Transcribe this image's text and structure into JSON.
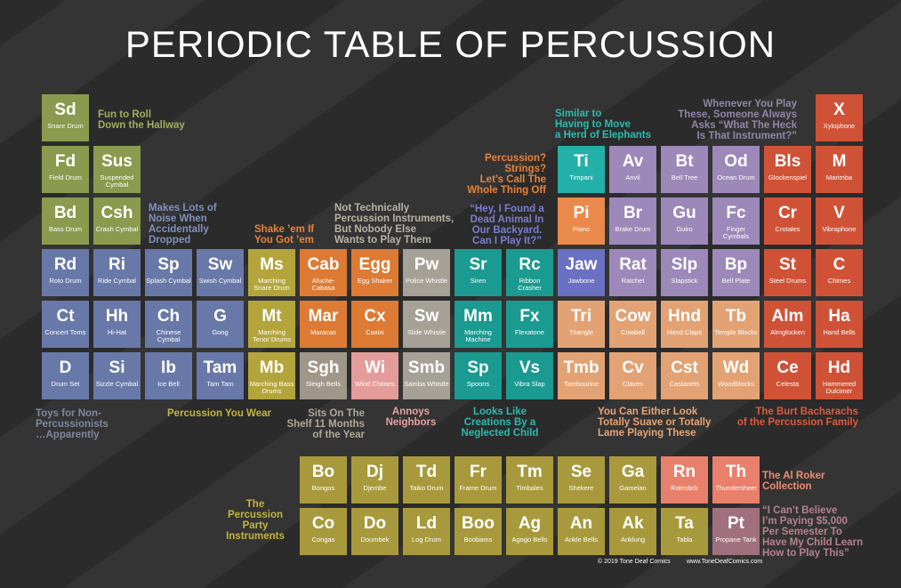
{
  "title": "PERIODIC TABLE OF PERCUSSION",
  "table": {
    "rows": [
      [
        {
          "symbol": "Sd",
          "name": "Snare Drum",
          "color": "#8b9a4e"
        },
        null,
        null,
        null,
        null,
        null,
        null,
        null,
        null,
        null,
        null,
        null,
        null,
        null,
        null,
        {
          "symbol": "X",
          "name": "Xylophone",
          "color": "#cf5237"
        }
      ],
      [
        {
          "symbol": "Fd",
          "name": "Field Drum",
          "color": "#8b9a4e"
        },
        {
          "symbol": "Sus",
          "name": "Suspended Cymbal",
          "color": "#8b9a4e"
        },
        null,
        null,
        null,
        null,
        null,
        null,
        null,
        null,
        {
          "symbol": "Ti",
          "name": "Timpani",
          "color": "#22b0a8"
        },
        {
          "symbol": "Av",
          "name": "Anvil",
          "color": "#9c88b9"
        },
        {
          "symbol": "Bt",
          "name": "Bell Tree",
          "color": "#9c88b9"
        },
        {
          "symbol": "Od",
          "name": "Ocean Drum",
          "color": "#9c88b9"
        },
        {
          "symbol": "Bls",
          "name": "Glockenspiel",
          "color": "#cf5237"
        },
        {
          "symbol": "M",
          "name": "Marimba",
          "color": "#cf5237"
        }
      ],
      [
        {
          "symbol": "Bd",
          "name": "Bass Drum",
          "color": "#8b9a4e"
        },
        {
          "symbol": "Csh",
          "name": "Crash Cymbal",
          "color": "#8b9a4e"
        },
        null,
        null,
        null,
        null,
        null,
        null,
        null,
        null,
        {
          "symbol": "Pi",
          "name": "Piano",
          "color": "#e98a4c"
        },
        {
          "symbol": "Br",
          "name": "Brake Drum",
          "color": "#9c88b9"
        },
        {
          "symbol": "Gu",
          "name": "Guiro",
          "color": "#9c88b9"
        },
        {
          "symbol": "Fc",
          "name": "Finger Cymbals",
          "color": "#9c88b9"
        },
        {
          "symbol": "Cr",
          "name": "Crotales",
          "color": "#cf5237"
        },
        {
          "symbol": "V",
          "name": "Vibraphone",
          "color": "#cf5237"
        }
      ],
      [
        {
          "symbol": "Rd",
          "name": "Roto Drum",
          "color": "#6878a8"
        },
        {
          "symbol": "Ri",
          "name": "Ride Cymbal",
          "color": "#6878a8"
        },
        {
          "symbol": "Sp",
          "name": "Splash Cymbal",
          "color": "#6878a8"
        },
        {
          "symbol": "Sw",
          "name": "Swish Cymbal",
          "color": "#6878a8"
        },
        {
          "symbol": "Ms",
          "name": "Marching Snare Drum",
          "color": "#b3a53c"
        },
        {
          "symbol": "Cab",
          "name": "Afuche-Cabasa",
          "color": "#dd7a33"
        },
        {
          "symbol": "Egg",
          "name": "Egg Shaker",
          "color": "#dd7a33"
        },
        {
          "symbol": "Pw",
          "name": "Police Whistle",
          "color": "#a6a197"
        },
        {
          "symbol": "Sr",
          "name": "Siren",
          "color": "#1a9a90"
        },
        {
          "symbol": "Rc",
          "name": "Ribbon Crasher",
          "color": "#1a9a90"
        },
        {
          "symbol": "Jaw",
          "name": "Jawbone",
          "color": "#6a70c2"
        },
        {
          "symbol": "Rat",
          "name": "Ratchet",
          "color": "#9c88b9"
        },
        {
          "symbol": "Slp",
          "name": "Slapstick",
          "color": "#9c88b9"
        },
        {
          "symbol": "Bp",
          "name": "Bell Plate",
          "color": "#9c88b9"
        },
        {
          "symbol": "St",
          "name": "Steel Drums",
          "color": "#cf5237"
        },
        {
          "symbol": "C",
          "name": "Chimes",
          "color": "#cf5237"
        }
      ],
      [
        {
          "symbol": "Ct",
          "name": "Concert Toms",
          "color": "#6878a8"
        },
        {
          "symbol": "Hh",
          "name": "Hi-Hat",
          "color": "#6878a8"
        },
        {
          "symbol": "Ch",
          "name": "Chinese Cymbal",
          "color": "#6878a8"
        },
        {
          "symbol": "G",
          "name": "Gong",
          "color": "#6878a8"
        },
        {
          "symbol": "Mt",
          "name": "Marching Tenor Drums",
          "color": "#b3a53c"
        },
        {
          "symbol": "Mar",
          "name": "Maracas",
          "color": "#dd7a33"
        },
        {
          "symbol": "Cx",
          "name": "Caxixi",
          "color": "#dd7a33"
        },
        {
          "symbol": "Sw",
          "name": "Slide Whistle",
          "color": "#a6a197"
        },
        {
          "symbol": "Mm",
          "name": "Marching Machine",
          "color": "#1a9a90"
        },
        {
          "symbol": "Fx",
          "name": "Flexatone",
          "color": "#1a9a90"
        },
        {
          "symbol": "Tri",
          "name": "Triangle",
          "color": "#e3a274"
        },
        {
          "symbol": "Cow",
          "name": "Cowbell",
          "color": "#e3a274"
        },
        {
          "symbol": "Hnd",
          "name": "Hand Claps",
          "color": "#e3a274"
        },
        {
          "symbol": "Tb",
          "name": "Temple Blocks",
          "color": "#e3a274"
        },
        {
          "symbol": "Alm",
          "name": "Almglocken",
          "color": "#cf5237"
        },
        {
          "symbol": "Ha",
          "name": "Hand Bells",
          "color": "#cf5237"
        }
      ],
      [
        {
          "symbol": "D",
          "name": "Drum Set",
          "color": "#6878a8"
        },
        {
          "symbol": "Si",
          "name": "Sizzle Cymbal",
          "color": "#6878a8"
        },
        {
          "symbol": "Ib",
          "name": "Ice Bell",
          "color": "#6878a8"
        },
        {
          "symbol": "Tam",
          "name": "Tam Tam",
          "color": "#6878a8"
        },
        {
          "symbol": "Mb",
          "name": "Marching Bass Drums",
          "color": "#b3a53c"
        },
        {
          "symbol": "Sgh",
          "name": "Sleigh Bells",
          "color": "#a0968a"
        },
        {
          "symbol": "Wi",
          "name": "Wind Chimes",
          "color": "#e39c9a"
        },
        {
          "symbol": "Smb",
          "name": "Samba Whistle",
          "color": "#a6a197"
        },
        {
          "symbol": "Sp",
          "name": "Spoons",
          "color": "#1a9a90"
        },
        {
          "symbol": "Vs",
          "name": "Vibra Slap",
          "color": "#1a9a90"
        },
        {
          "symbol": "Tmb",
          "name": "Tambourine",
          "color": "#e3a274"
        },
        {
          "symbol": "Cv",
          "name": "Claves",
          "color": "#e3a274"
        },
        {
          "symbol": "Cst",
          "name": "Castanets",
          "color": "#e3a274"
        },
        {
          "symbol": "Wd",
          "name": "Woodblocks",
          "color": "#e3a274"
        },
        {
          "symbol": "Ce",
          "name": "Celesta",
          "color": "#cf5237"
        },
        {
          "symbol": "Hd",
          "name": "Hammered Dulcimer",
          "color": "#cf5237"
        }
      ]
    ]
  },
  "lower": {
    "rows": [
      [
        {
          "symbol": "Bo",
          "name": "Bongos",
          "color": "#a89a3c"
        },
        {
          "symbol": "Dj",
          "name": "Djembe",
          "color": "#a89a3c"
        },
        {
          "symbol": "Td",
          "name": "Taiko Drum",
          "color": "#a89a3c"
        },
        {
          "symbol": "Fr",
          "name": "Frame Drum",
          "color": "#a89a3c"
        },
        {
          "symbol": "Tm",
          "name": "Timbales",
          "color": "#a89a3c"
        },
        {
          "symbol": "Se",
          "name": "Shekere",
          "color": "#a89a3c"
        },
        {
          "symbol": "Ga",
          "name": "Gamelan",
          "color": "#a89a3c"
        },
        {
          "symbol": "Rn",
          "name": "Rainstick",
          "color": "#e8806c"
        },
        {
          "symbol": "Th",
          "name": "Thundersheet",
          "color": "#e8806c"
        }
      ],
      [
        {
          "symbol": "Co",
          "name": "Congas",
          "color": "#a89a3c"
        },
        {
          "symbol": "Do",
          "name": "Doumbek",
          "color": "#a89a3c"
        },
        {
          "symbol": "Ld",
          "name": "Log Drum",
          "color": "#a89a3c"
        },
        {
          "symbol": "Boo",
          "name": "Boobams",
          "color": "#a89a3c"
        },
        {
          "symbol": "Ag",
          "name": "Agogo Bells",
          "color": "#a89a3c"
        },
        {
          "symbol": "An",
          "name": "Ankle Bells",
          "color": "#a89a3c"
        },
        {
          "symbol": "Ak",
          "name": "Anklung",
          "color": "#a89a3c"
        },
        {
          "symbol": "Ta",
          "name": "Tabla",
          "color": "#a89a3c"
        },
        {
          "symbol": "Pt",
          "name": "Propane Tank",
          "color": "#a0707e"
        }
      ]
    ]
  },
  "annotations": [
    {
      "lines": [
        "Fun to Roll",
        "Down the Hallway"
      ],
      "color": "#a0ad5e"
    },
    {
      "lines": [
        "Makes Lots of",
        "Noise When",
        "Accidentally",
        "Dropped"
      ],
      "color": "#8390bd"
    },
    {
      "lines": [
        "Shake ’em If",
        "You Got ’em"
      ],
      "color": "#e8823a"
    },
    {
      "lines": [
        "Not Technically",
        "Percussion Instruments,",
        "But Nobody Else",
        "Wants to Play Them"
      ],
      "color": "#b9b3a6"
    },
    {
      "lines": [
        "Percussion?",
        "Strings?",
        "Let’s Call The",
        "Whole Thing Off"
      ],
      "color": "#e8823a"
    },
    {
      "lines": [
        "Similar to",
        "Having to Move",
        "a Herd of Elephants"
      ],
      "color": "#2bbbb0"
    },
    {
      "lines": [
        "Whenever You Play",
        "These, Someone Always",
        "Asks “What The Heck",
        "Is That Instrument?”"
      ],
      "color": "#8f86a8"
    },
    {
      "lines": [
        "“Hey, I Found a",
        "Dead Animal In",
        "Our Backyard.",
        "Can I Play It?”"
      ],
      "color": "#7a7ed0"
    },
    {
      "lines": [
        "Toys for Non-",
        "Percussionists",
        "…Apparently"
      ],
      "color": "#7f86a0"
    },
    {
      "lines": [
        "Percussion You Wear"
      ],
      "color": "#c4b43e"
    },
    {
      "lines": [
        "Sits On The",
        "Shelf 11 Months",
        "of the Year"
      ],
      "color": "#b0a898"
    },
    {
      "lines": [
        "Annoys",
        "Neighbors"
      ],
      "color": "#e8a0a0"
    },
    {
      "lines": [
        "Looks Like",
        "Creations By a",
        "Neglected Child"
      ],
      "color": "#2bbbb0"
    },
    {
      "lines": [
        "You Can Either Look",
        "Totally Suave or Totally",
        "Lame Playing These"
      ],
      "color": "#e8a474"
    },
    {
      "lines": [
        "The Burt Bacharachs",
        "of the Percussion Family"
      ],
      "color": "#dd5a3c"
    },
    {
      "lines": [
        "The",
        "Percussion",
        "Party",
        "Instruments"
      ],
      "color": "#c4b43e"
    },
    {
      "lines": [
        "The Al Roker",
        "Collection"
      ],
      "color": "#ee8a74"
    },
    {
      "lines": [
        "“I Can’t Believe",
        "I’m Paying $5,000",
        "Per Semester To",
        "Have My Child Learn",
        "How to Play This”"
      ],
      "color": "#b88090"
    }
  ],
  "footer": {
    "copyright": "© 2019 Tone Deaf Comics",
    "website": "www.ToneDeafComics.com"
  }
}
